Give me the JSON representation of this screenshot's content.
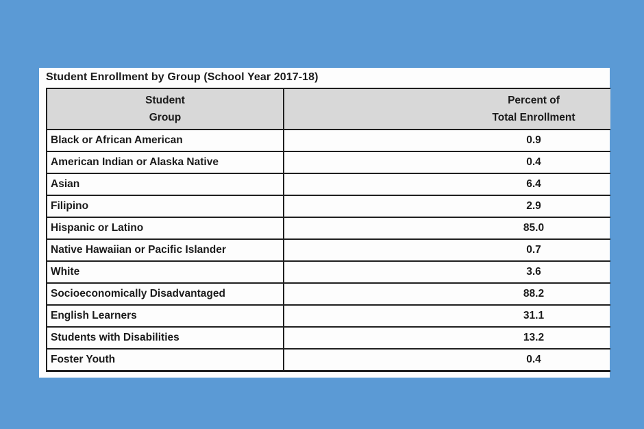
{
  "colors": {
    "page_background": "#5b9ad5",
    "panel_background": "#fdfdfd",
    "header_background": "#d8d8d8",
    "border": "#1f1f1f",
    "text": "#1b1b1b"
  },
  "document": {
    "title": "Student Enrollment by Group (School Year 2017-18)",
    "table": {
      "header": {
        "student_group_line1": "Student",
        "student_group_line2": "Group",
        "percent_line1": "Percent of",
        "percent_line2": "Total Enrollment"
      },
      "rows": [
        {
          "group": "Black or African American",
          "percent": "0.9"
        },
        {
          "group": "American Indian or Alaska Native",
          "percent": "0.4"
        },
        {
          "group": "Asian",
          "percent": "6.4"
        },
        {
          "group": "Filipino",
          "percent": "2.9"
        },
        {
          "group": "Hispanic or Latino",
          "percent": "85.0"
        },
        {
          "group": "Native Hawaiian or Pacific Islander",
          "percent": "0.7"
        },
        {
          "group": "White",
          "percent": "3.6"
        },
        {
          "group": "Socioeconomically Disadvantaged",
          "percent": "88.2"
        },
        {
          "group": "English Learners",
          "percent": "31.1"
        },
        {
          "group": "Students with Disabilities",
          "percent": "13.2"
        },
        {
          "group": "Foster Youth",
          "percent": "0.4"
        }
      ]
    }
  }
}
